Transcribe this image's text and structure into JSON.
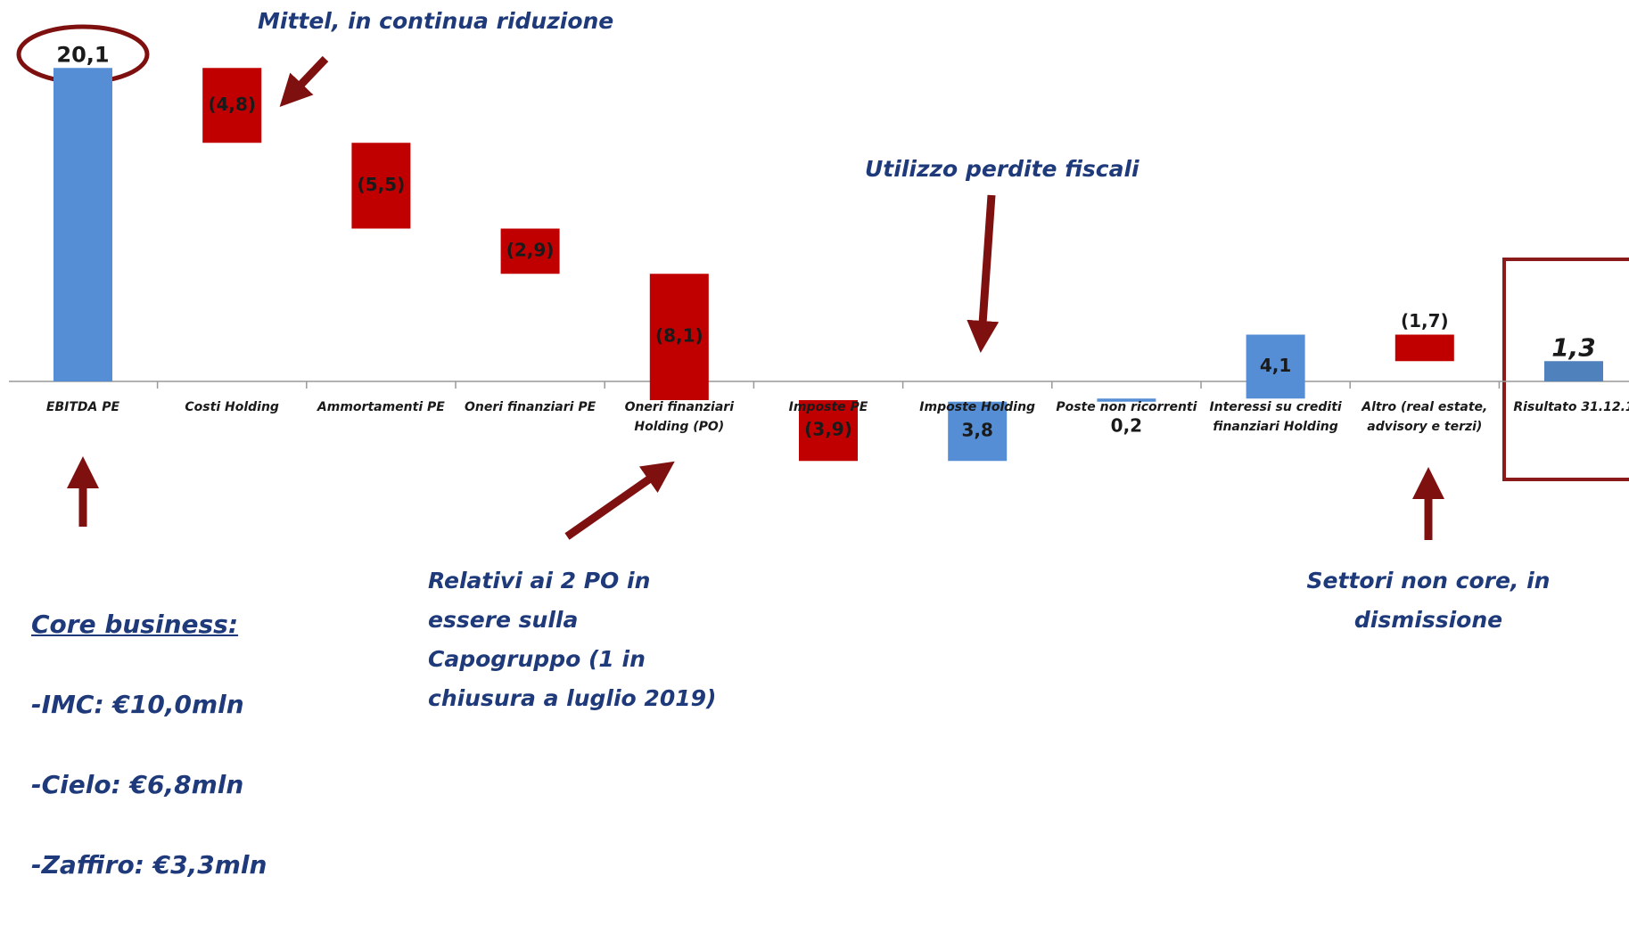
{
  "chart_data": {
    "type": "waterfall",
    "categories": [
      "EBITDA PE",
      "Costi Holding",
      "Ammortamenti PE",
      "Oneri finanziari PE",
      "Oneri finanziari\nHolding (PO)",
      "Imposte PE",
      "Imposte Holding",
      "Poste non ricorrenti",
      "Interessi su crediti\nfinanziari Holding",
      "Altro (real estate,\nadvisory e terzi)",
      "Risultato 31.12.1"
    ],
    "values": [
      20.1,
      -4.8,
      -5.5,
      -2.9,
      -8.1,
      -3.9,
      3.8,
      0.2,
      4.1,
      -1.7,
      1.3
    ],
    "value_labels": [
      "20,1",
      "(4,8)",
      "(5,5)",
      "(2,9)",
      "(8,1)",
      "(3,9)",
      "3,8",
      "0,2",
      "4,1",
      "(1,7)",
      "1,3"
    ],
    "measures": [
      "absolute",
      "relative",
      "relative",
      "relative",
      "relative",
      "relative",
      "relative",
      "relative",
      "relative",
      "relative",
      "total"
    ],
    "colors": {
      "increase": "#558ed5",
      "decrease": "#c00000",
      "total": "#4f81bd"
    },
    "annotations": [
      "Mittel, in continua riduzione",
      "Utilizzo perdite fiscali",
      "Relativi ai 2 PO in\nessere sulla\nCapogruppo (1 in\nchiusura a luglio 2019)",
      "Settori non core, in\ndismissione"
    ],
    "core_business": {
      "heading": "Core business:",
      "items": [
        "-IMC: €10,0mln",
        "-Cielo: €6,8mln",
        "-Zaffiro: €3,3mln"
      ]
    }
  }
}
